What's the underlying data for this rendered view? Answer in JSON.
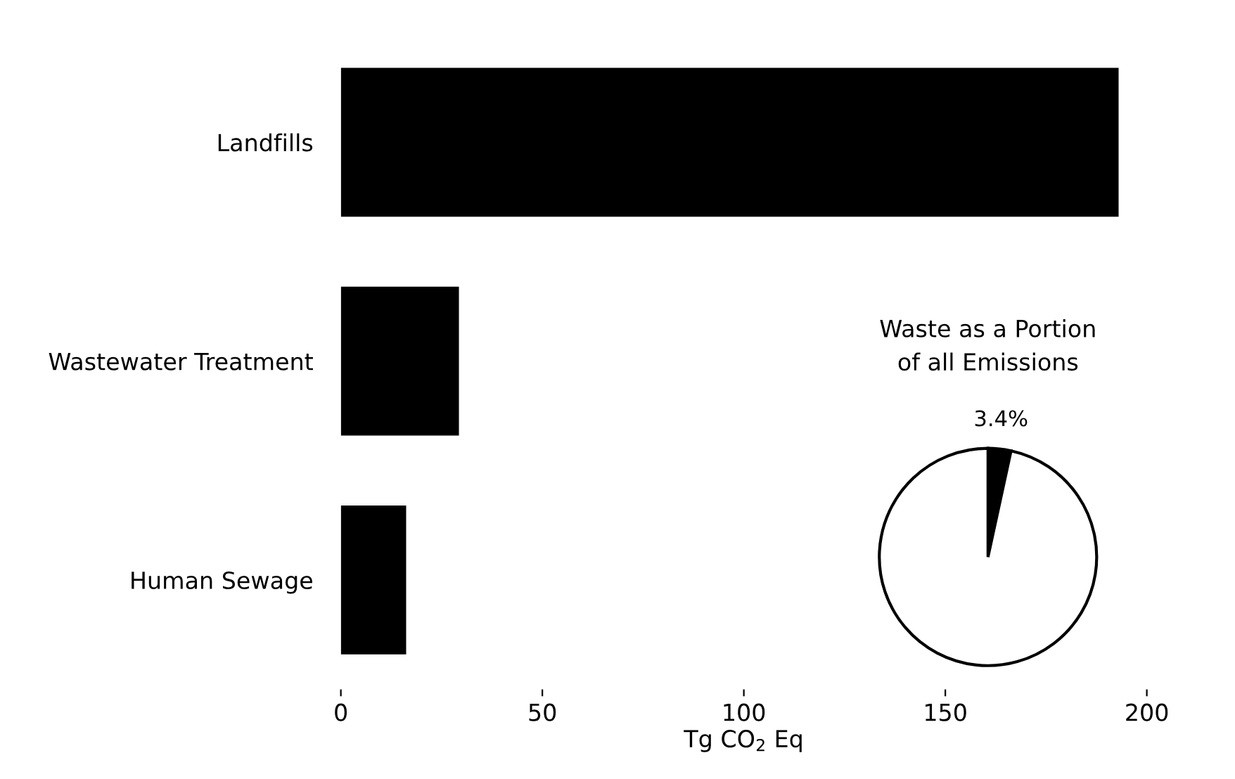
{
  "chart_data": [
    {
      "type": "bar",
      "orientation": "horizontal",
      "categories": [
        "Landfills",
        "Wastewater Treatment",
        "Human Sewage"
      ],
      "values": [
        193,
        29.3,
        16.2
      ],
      "color": "#000000",
      "xlabel": "Tg CO$_{2}$ Eq",
      "xlim": [
        0,
        200
      ],
      "xticks": [
        0,
        50,
        100,
        150,
        200
      ],
      "grid": false
    },
    {
      "type": "pie",
      "title": "Waste as a Portion\nof all Emissions",
      "categories": [
        null,
        null
      ],
      "values": [
        3.4,
        96.6
      ],
      "colors": [
        "#000000",
        "#ffffff"
      ],
      "value_labels": [
        "3.4%",
        null
      ]
    }
  ]
}
